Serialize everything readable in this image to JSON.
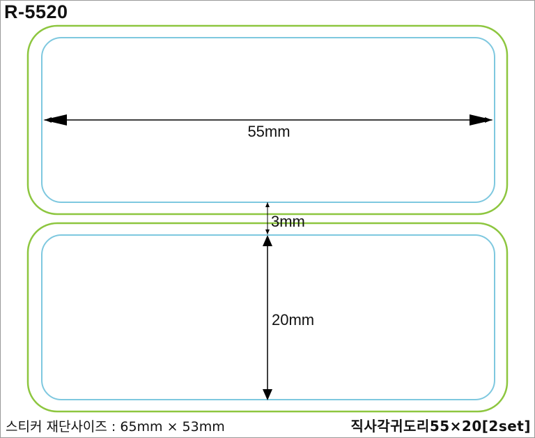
{
  "title": "R-5520",
  "dimensions": {
    "width_label": "55mm",
    "gap_label": "3mm",
    "height_label": "20mm"
  },
  "footer": {
    "cut_size": "스티커 재단사이즈 : 65mm × 53mm",
    "product_name": "직사각귀도리55×20[2set]"
  },
  "colors": {
    "cut_line": "#8dc63f",
    "label_line": "#7ec8df",
    "arrow": "#000000"
  }
}
